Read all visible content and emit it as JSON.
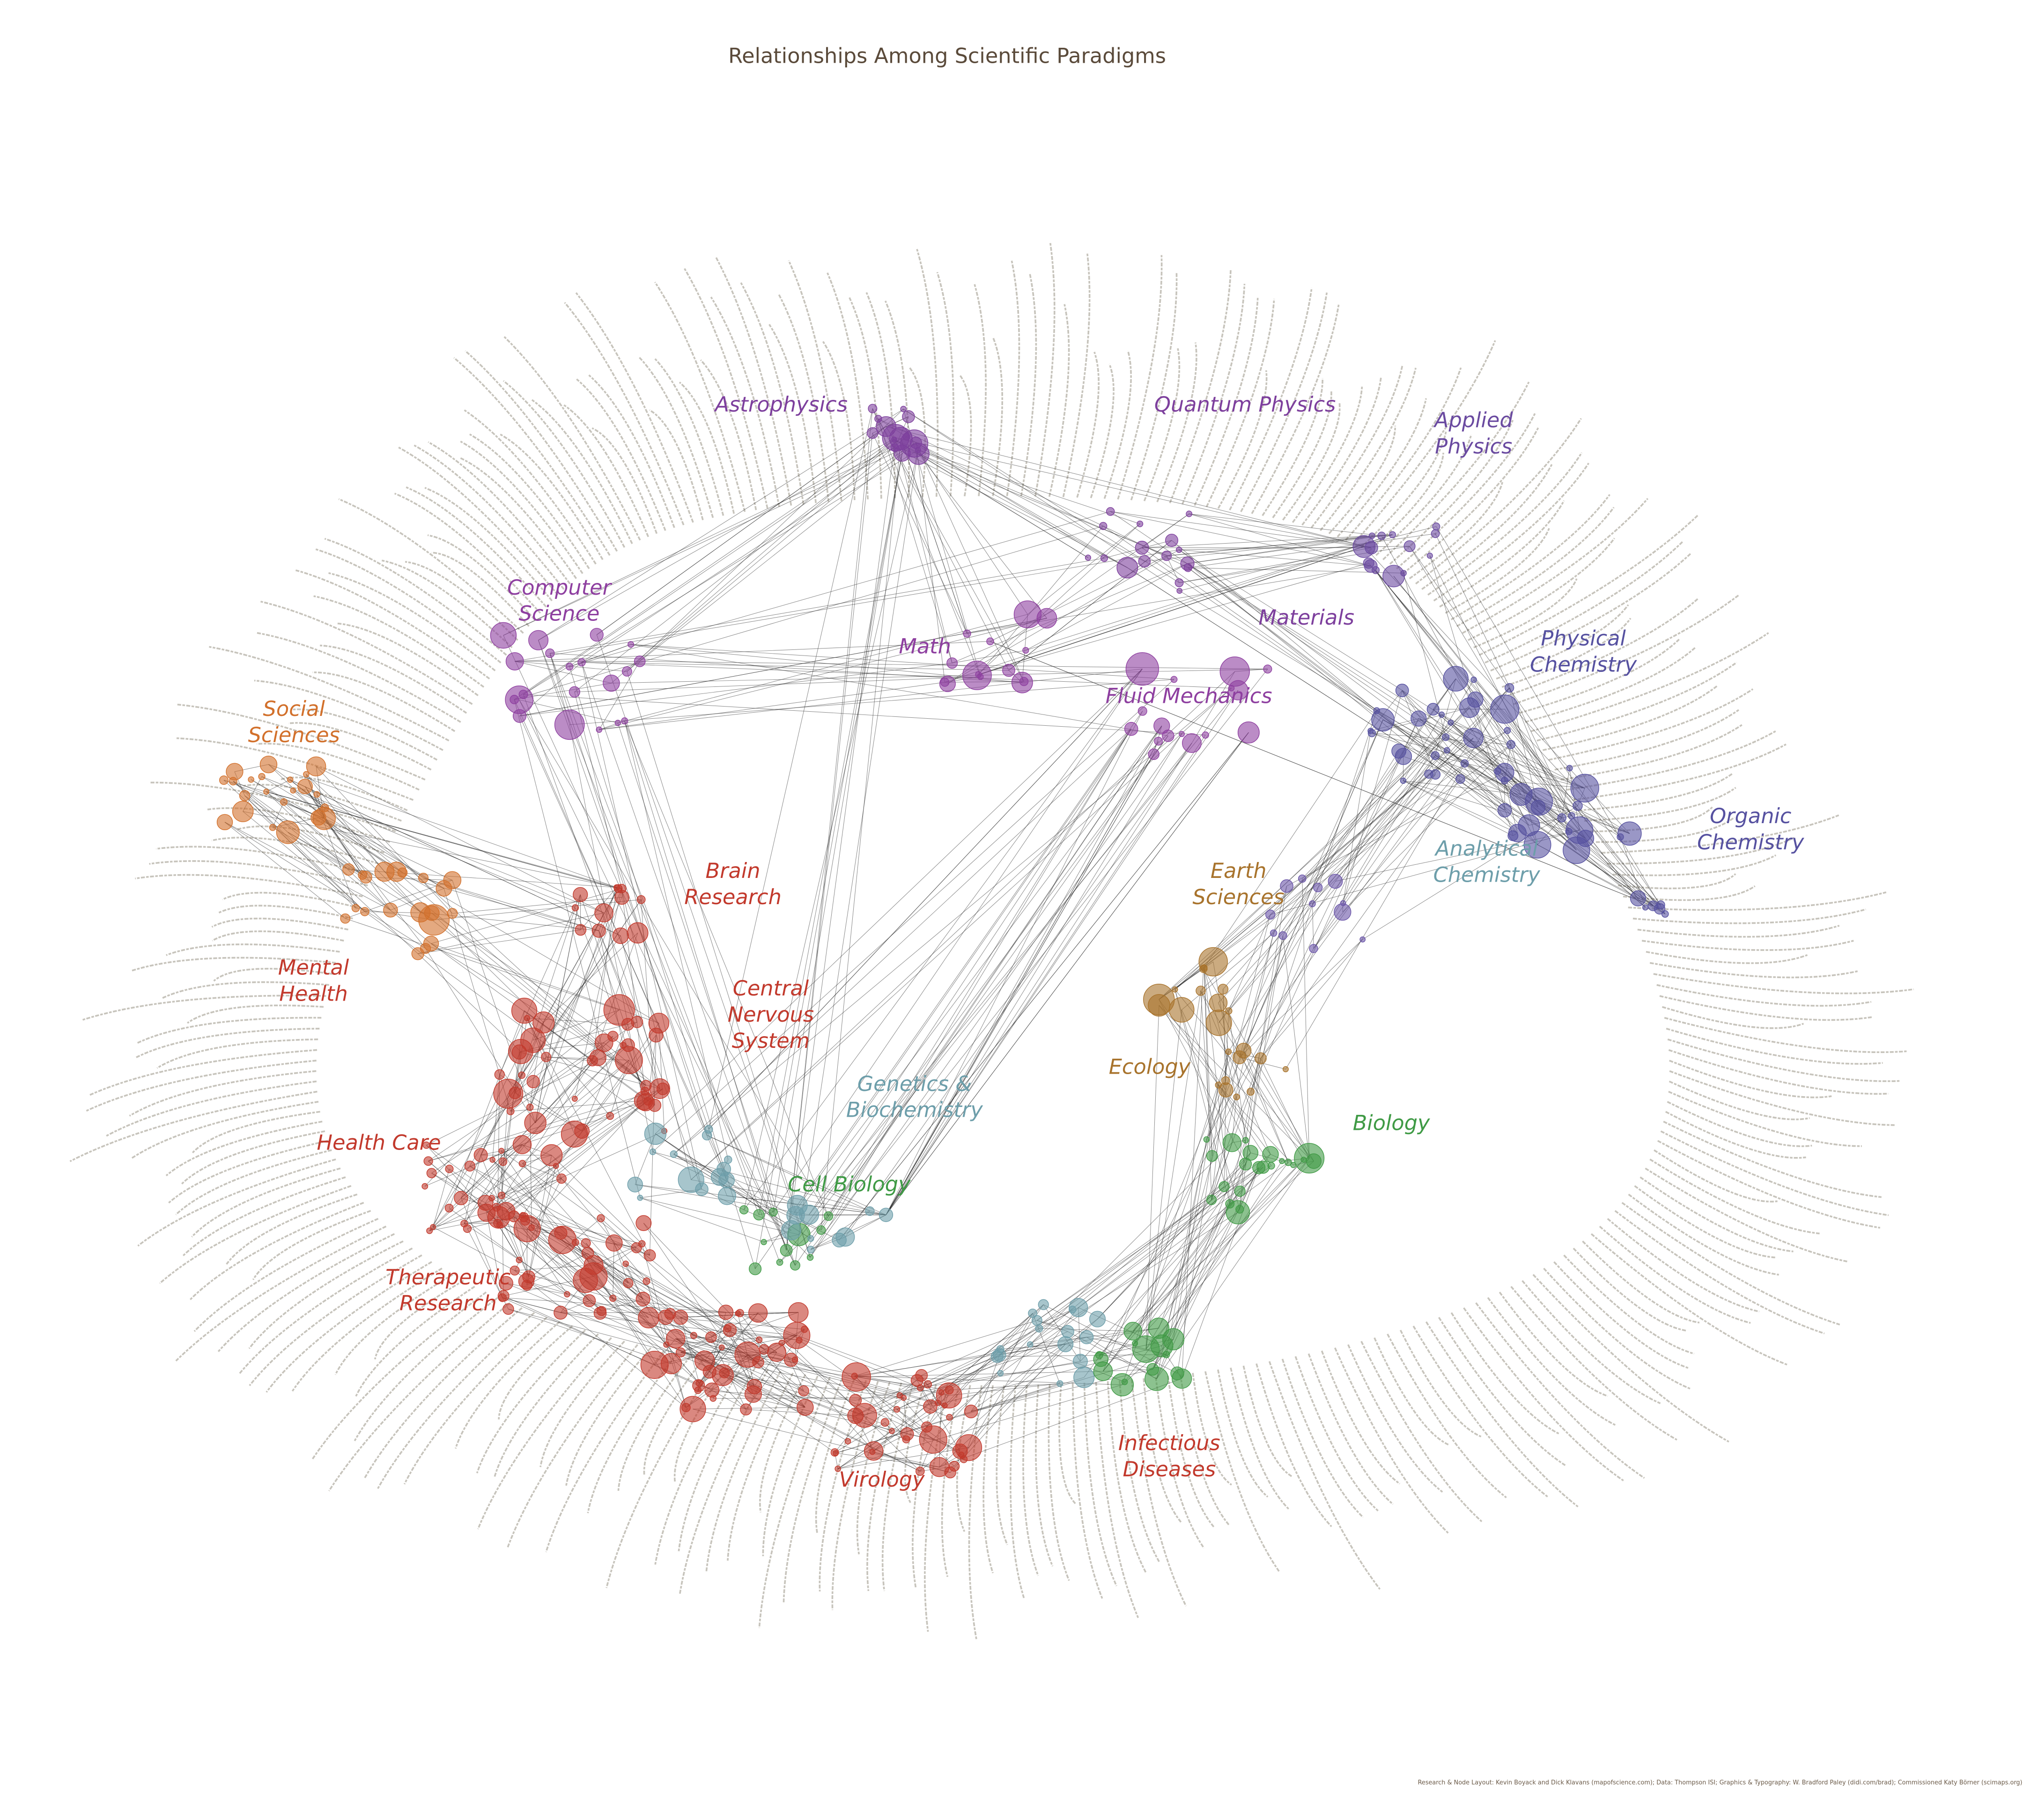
{
  "title": "Relationships Among Scientific Paradigms",
  "regions": [
    {
      "lines": [
        "Astrophysics"
      ],
      "color": "#7d3f9d"
    },
    {
      "lines": [
        "Quantum Physics"
      ],
      "color": "#7d3f9d"
    },
    {
      "lines": [
        "Applied",
        "Physics"
      ],
      "color": "#6a4aa0"
    },
    {
      "lines": [
        "Computer",
        "Science"
      ],
      "color": "#8e3fa0"
    },
    {
      "lines": [
        "Math"
      ],
      "color": "#8e3fa0"
    },
    {
      "lines": [
        "Materials"
      ],
      "color": "#7d3f9d"
    },
    {
      "lines": [
        "Physical",
        "Chemistry"
      ],
      "color": "#5651a0"
    },
    {
      "lines": [
        "Fluid Mechanics"
      ],
      "color": "#8e3fa0"
    },
    {
      "lines": [
        "Social",
        "Sciences"
      ],
      "color": "#d2702b"
    },
    {
      "lines": [
        "Organic",
        "Chemistry"
      ],
      "color": "#5651a0"
    },
    {
      "lines": [
        "Analytical",
        "Chemistry"
      ],
      "color": "#6d9eaa"
    },
    {
      "lines": [
        "Brain",
        "Research"
      ],
      "color": "#c2392c"
    },
    {
      "lines": [
        "Earth",
        "Sciences"
      ],
      "color": "#a8732c"
    },
    {
      "lines": [
        "Mental",
        "Health"
      ],
      "color": "#c2392c"
    },
    {
      "lines": [
        "Central",
        "Nervous",
        "System"
      ],
      "color": "#c2392c"
    },
    {
      "lines": [
        "Ecology"
      ],
      "color": "#a8732c"
    },
    {
      "lines": [
        "Genetics &",
        "Biochemistry"
      ],
      "color": "#6d9eaa"
    },
    {
      "lines": [
        "Biology"
      ],
      "color": "#3f9a45"
    },
    {
      "lines": [
        "Health Care"
      ],
      "color": "#c2392c"
    },
    {
      "lines": [
        "Cell Biology"
      ],
      "color": "#3f9a45"
    },
    {
      "lines": [
        "Therapeutic",
        "Research"
      ],
      "color": "#c2392c"
    },
    {
      "lines": [
        "Infectious",
        "Diseases"
      ],
      "color": "#c2392c"
    },
    {
      "lines": [
        "Virology"
      ],
      "color": "#c2392c"
    }
  ],
  "credit": "Research & Node Layout: Kevin Boyack and Dick Klavans (mapofscience.com); Data: Thompson ISI; Graphics & Typography: W. Bradford Paley (didi.com/brad); Commissioned Katy Börner (scimaps.org)"
}
